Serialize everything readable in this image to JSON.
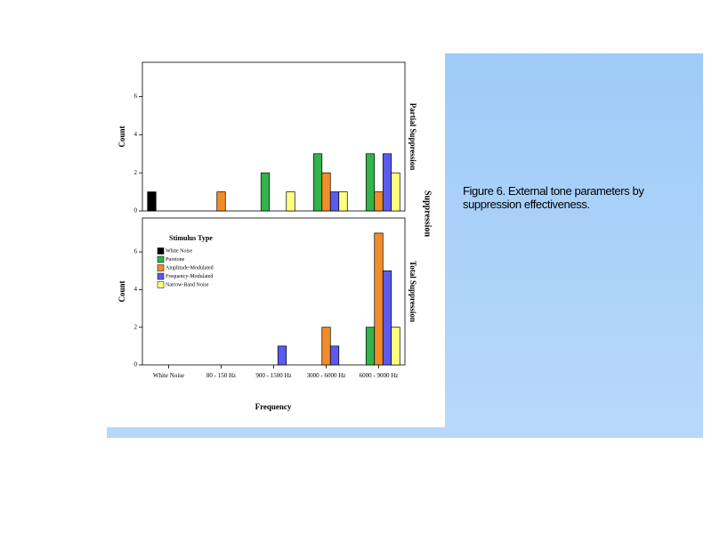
{
  "caption": "Figure 6. External tone parameters by suppression effectiveness.",
  "facet_label": "Suppression",
  "xlabel": "Frequency",
  "legend_title": "Stimulus Type",
  "chart_data": [
    {
      "type": "bar",
      "title": "Partial Suppression",
      "ylabel": "Count",
      "categories": [
        "White Noise",
        "80 - 150 Hz",
        "900 - 1500 Hz",
        "3000 - 6000 Hz",
        "6000 - 9000 Hz"
      ],
      "series": [
        {
          "name": "White Noise",
          "color": "#000000",
          "values": [
            1,
            0,
            0,
            0,
            0
          ]
        },
        {
          "name": "Puretone",
          "color": "#33b34a",
          "values": [
            0,
            0,
            2,
            3,
            3
          ]
        },
        {
          "name": "Amplitude-Modulated",
          "color": "#f28c28",
          "values": [
            0,
            1,
            0,
            2,
            1
          ]
        },
        {
          "name": "Frequency-Modulated",
          "color": "#5b5bf0",
          "values": [
            0,
            0,
            0,
            1,
            3
          ]
        },
        {
          "name": "Narrow-Band Noise",
          "color": "#ffff80",
          "values": [
            0,
            0,
            1,
            1,
            2
          ]
        }
      ],
      "ylim": [
        0,
        7.8
      ],
      "yticks": [
        0,
        2,
        4,
        6
      ]
    },
    {
      "type": "bar",
      "title": "Total Suppression",
      "ylabel": "Count",
      "categories": [
        "White Noise",
        "80 - 150 Hz",
        "900 - 1500 Hz",
        "3000 - 6000 Hz",
        "6000 - 9000 Hz"
      ],
      "series": [
        {
          "name": "White Noise",
          "color": "#000000",
          "values": [
            0,
            0,
            0,
            0,
            0
          ]
        },
        {
          "name": "Puretone",
          "color": "#33b34a",
          "values": [
            0,
            0,
            0,
            0,
            2
          ]
        },
        {
          "name": "Amplitude-Modulated",
          "color": "#f28c28",
          "values": [
            0,
            0,
            0,
            2,
            7
          ]
        },
        {
          "name": "Frequency-Modulated",
          "color": "#5b5bf0",
          "values": [
            0,
            0,
            1,
            1,
            5
          ]
        },
        {
          "name": "Narrow-Band Noise",
          "color": "#ffff80",
          "values": [
            0,
            0,
            0,
            0,
            2
          ]
        }
      ],
      "ylim": [
        0,
        7.8
      ],
      "yticks": [
        0,
        2,
        4,
        6
      ]
    }
  ]
}
